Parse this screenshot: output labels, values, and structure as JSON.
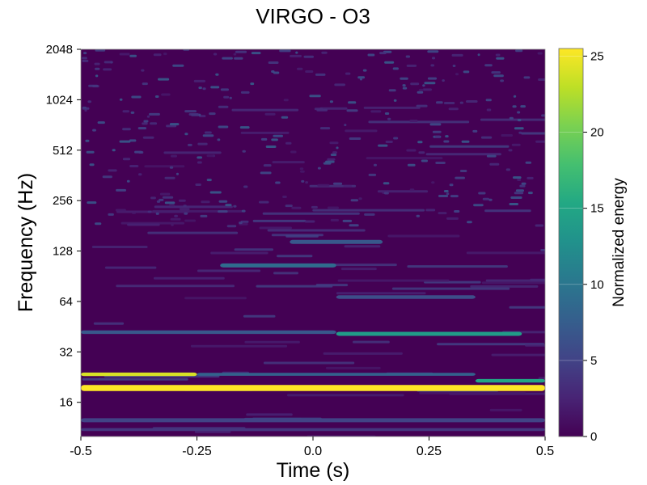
{
  "chart_data": {
    "type": "heatmap",
    "title": "VIRGO - O3",
    "xlabel": "Time (s)",
    "ylabel": "Frequency (Hz)",
    "xlim": [
      -0.5,
      0.5
    ],
    "ylim": [
      10,
      2048
    ],
    "yscale": "log2",
    "x_ticks": [
      -0.5,
      -0.25,
      0.0,
      0.25,
      0.5
    ],
    "x_tick_labels": [
      "-0.5",
      "-0.25",
      "0.0",
      "0.25",
      "0.5"
    ],
    "y_ticks": [
      16,
      32,
      64,
      128,
      256,
      512,
      1024,
      2048
    ],
    "y_tick_labels": [
      "16",
      "32",
      "64",
      "128",
      "256",
      "512",
      "1024",
      "2048"
    ],
    "colormap": "viridis",
    "colorbar": {
      "label": "Normalized energy",
      "range": [
        0,
        25.5
      ],
      "ticks": [
        0,
        5,
        10,
        15,
        20,
        25
      ],
      "tick_labels": [
        "0",
        "5",
        "10",
        "15",
        "20",
        "25"
      ]
    },
    "features": [
      {
        "kind": "band",
        "freq_hz": 19.5,
        "t_start": -0.5,
        "t_end": 0.5,
        "energy": 25.5,
        "width_octaves": 0.12
      },
      {
        "kind": "band",
        "freq_hz": 23.5,
        "t_start": -0.5,
        "t_end": -0.25,
        "energy": 24,
        "width_octaves": 0.07
      },
      {
        "kind": "band",
        "freq_hz": 23.5,
        "t_start": -0.25,
        "t_end": 0.35,
        "energy": 8,
        "width_octaves": 0.06
      },
      {
        "kind": "band",
        "freq_hz": 21.5,
        "t_start": 0.35,
        "t_end": 0.5,
        "energy": 15,
        "width_octaves": 0.07
      },
      {
        "kind": "band",
        "freq_hz": 41,
        "t_start": 0.05,
        "t_end": 0.45,
        "energy": 14,
        "width_octaves": 0.08
      },
      {
        "kind": "band",
        "freq_hz": 42,
        "t_start": -0.5,
        "t_end": 0.05,
        "energy": 7,
        "width_octaves": 0.07
      },
      {
        "kind": "band",
        "freq_hz": 12.5,
        "t_start": -0.5,
        "t_end": 0.5,
        "energy": 5,
        "width_octaves": 0.08
      },
      {
        "kind": "band",
        "freq_hz": 11,
        "t_start": -0.5,
        "t_end": 0.5,
        "energy": 4,
        "width_octaves": 0.06
      },
      {
        "kind": "band",
        "freq_hz": 105,
        "t_start": -0.2,
        "t_end": 0.05,
        "energy": 9,
        "width_octaves": 0.08
      },
      {
        "kind": "band",
        "freq_hz": 145,
        "t_start": -0.05,
        "t_end": 0.15,
        "energy": 7,
        "width_octaves": 0.08
      },
      {
        "kind": "band",
        "freq_hz": 68,
        "t_start": 0.05,
        "t_end": 0.35,
        "energy": 6,
        "width_octaves": 0.07
      }
    ]
  }
}
